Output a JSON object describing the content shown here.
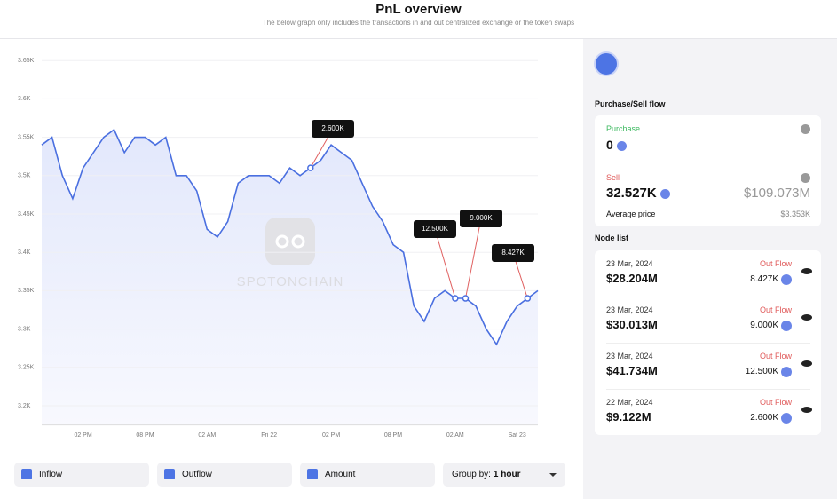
{
  "header": {
    "title": "PnL overview",
    "subtitle": "The below graph only includes the transactions in and out centralized exchange or the token swaps"
  },
  "chart_data": {
    "type": "line",
    "watermark": "SPOTONCHAIN",
    "color": "#4a6fe0",
    "categories": [
      null,
      null,
      null,
      null,
      "02 PM",
      null,
      null,
      null,
      null,
      null,
      "08 PM",
      null,
      null,
      null,
      null,
      null,
      "02 AM",
      null,
      null,
      null,
      null,
      null,
      "Fri 22",
      null,
      null,
      null,
      null,
      null,
      "02 PM",
      null,
      null,
      null,
      null,
      null,
      "08 PM",
      null,
      null,
      null,
      null,
      null,
      "02 AM",
      null,
      null,
      null,
      null,
      null,
      "Sat 23",
      null,
      null
    ],
    "values": [
      3.54,
      3.55,
      3.5,
      3.47,
      3.51,
      3.53,
      3.55,
      3.56,
      3.53,
      3.55,
      3.55,
      3.54,
      3.55,
      3.5,
      3.5,
      3.48,
      3.43,
      3.42,
      3.44,
      3.49,
      3.5,
      3.5,
      3.5,
      3.49,
      3.51,
      3.5,
      3.51,
      3.52,
      3.54,
      3.53,
      3.52,
      3.49,
      3.46,
      3.44,
      3.41,
      3.4,
      3.33,
      3.31,
      3.34,
      3.35,
      3.34,
      3.34,
      3.33,
      3.3,
      3.28,
      3.31,
      3.33,
      3.34,
      3.35
    ],
    "annotations": [
      "2.600K",
      "12.500K",
      "9.000K",
      "8.427K"
    ],
    "ylim": [
      3.175,
      3.675
    ],
    "yticks": [
      {
        "value": 3.2,
        "label": "3.2K"
      },
      {
        "value": 3.25,
        "label": "3.25K"
      },
      {
        "value": 3.3,
        "label": "3.3K"
      },
      {
        "value": 3.35,
        "label": "3.35K"
      },
      {
        "value": 3.4,
        "label": "3.4K"
      },
      {
        "value": 3.45,
        "label": "3.45K"
      },
      {
        "value": 3.5,
        "label": "3.5K"
      },
      {
        "value": 3.55,
        "label": "3.55K"
      },
      {
        "value": 3.6,
        "label": "3.6K"
      },
      {
        "value": 3.65,
        "label": "3.65K"
      }
    ],
    "grid": true
  },
  "controls": {
    "toggles": [
      "Inflow",
      "Outflow",
      "Amount"
    ],
    "group_by_label": "Group by:",
    "group_by_value": "1 hour"
  },
  "panel": {
    "flow_title": "Purchase/Sell flow",
    "purchase_label": "Purchase",
    "purchase_value": "0",
    "sell_label": "Sell",
    "sell_value": "32.527K",
    "sell_usd": "$109.073M",
    "avg_label": "Average price",
    "avg_value": "$3.353K",
    "node_title": "Node list",
    "nodes": [
      {
        "date": "23 Mar, 2024",
        "amount": "$28.204M",
        "flow": "Out Flow",
        "tokens": "8.427K"
      },
      {
        "date": "23 Mar, 2024",
        "amount": "$30.013M",
        "flow": "Out Flow",
        "tokens": "9.000K"
      },
      {
        "date": "23 Mar, 2024",
        "amount": "$41.734M",
        "flow": "Out Flow",
        "tokens": "12.500K"
      },
      {
        "date": "22 Mar, 2024",
        "amount": "$9.122M",
        "flow": "Out Flow",
        "tokens": "2.600K"
      }
    ]
  }
}
